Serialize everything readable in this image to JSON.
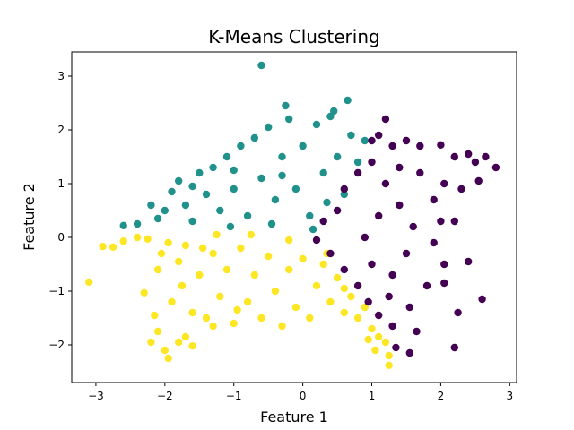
{
  "chart_data": {
    "type": "scatter",
    "title": "K-Means Clustering",
    "xlabel": "Feature 1",
    "ylabel": "Feature 2",
    "xlim": [
      -3.35,
      3.1
    ],
    "ylim": [
      -2.7,
      3.45
    ],
    "xticks": [
      -3,
      -2,
      -1,
      0,
      1,
      2,
      3
    ],
    "yticks": [
      -2,
      -1,
      0,
      1,
      2,
      3
    ],
    "grid": false,
    "legend": "none",
    "colors": {
      "cluster_yellow": "#fde725",
      "cluster_teal": "#21918c",
      "cluster_purple": "#440154"
    },
    "series": [
      {
        "color": "#fde725",
        "points": [
          [
            -3.1,
            -0.83
          ],
          [
            -2.9,
            -0.17
          ],
          [
            -2.75,
            -0.18
          ],
          [
            -2.6,
            -0.07
          ],
          [
            -2.4,
            0.0
          ],
          [
            -2.25,
            -0.03
          ],
          [
            -2.3,
            -1.03
          ],
          [
            -2.2,
            -1.95
          ],
          [
            -2.1,
            -1.75
          ],
          [
            -2.0,
            -2.1
          ],
          [
            -1.95,
            -2.25
          ],
          [
            -1.8,
            -1.95
          ],
          [
            -1.7,
            -1.85
          ],
          [
            -1.6,
            -2.02
          ],
          [
            -2.05,
            -0.3
          ],
          [
            -2.1,
            -0.6
          ],
          [
            -1.95,
            -0.1
          ],
          [
            -1.8,
            -0.45
          ],
          [
            -1.75,
            -0.9
          ],
          [
            -1.9,
            -1.2
          ],
          [
            -1.6,
            -1.4
          ],
          [
            -1.5,
            -0.7
          ],
          [
            -1.4,
            -1.5
          ],
          [
            -1.3,
            -0.3
          ],
          [
            -1.2,
            -1.1
          ],
          [
            -1.1,
            -0.6
          ],
          [
            -1.0,
            -1.6
          ],
          [
            -0.9,
            -0.2
          ],
          [
            -0.8,
            -1.2
          ],
          [
            -0.7,
            -0.7
          ],
          [
            -0.6,
            -1.5
          ],
          [
            -0.5,
            -0.35
          ],
          [
            -0.4,
            -1.0
          ],
          [
            -0.3,
            -1.65
          ],
          [
            -0.2,
            -0.6
          ],
          [
            -0.1,
            -1.3
          ],
          [
            0.0,
            -0.4
          ],
          [
            0.1,
            -1.5
          ],
          [
            0.2,
            -0.9
          ],
          [
            0.3,
            -0.5
          ],
          [
            0.4,
            -1.2
          ],
          [
            0.5,
            -0.75
          ],
          [
            0.6,
            -1.4
          ],
          [
            0.7,
            -1.1
          ],
          [
            0.8,
            -1.5
          ],
          [
            0.9,
            -1.3
          ],
          [
            1.0,
            -1.7
          ],
          [
            1.1,
            -1.85
          ],
          [
            1.2,
            -1.95
          ],
          [
            1.25,
            -2.2
          ],
          [
            1.25,
            -2.38
          ],
          [
            1.05,
            -2.1
          ],
          [
            0.95,
            -1.9
          ],
          [
            -1.3,
            -1.65
          ],
          [
            -1.7,
            -0.15
          ],
          [
            -1.25,
            0.05
          ],
          [
            -0.75,
            0.05
          ],
          [
            -0.2,
            -0.05
          ],
          [
            0.35,
            -0.3
          ],
          [
            -2.15,
            -1.45
          ],
          [
            -1.45,
            -0.2
          ],
          [
            -0.95,
            -1.35
          ],
          [
            0.6,
            -0.95
          ]
        ]
      },
      {
        "color": "#21918c",
        "points": [
          [
            -0.6,
            3.2
          ],
          [
            -2.6,
            0.22
          ],
          [
            -2.4,
            0.25
          ],
          [
            -2.2,
            0.6
          ],
          [
            -2.1,
            0.35
          ],
          [
            -2.0,
            0.5
          ],
          [
            -1.9,
            0.85
          ],
          [
            -1.8,
            1.05
          ],
          [
            -1.7,
            0.6
          ],
          [
            -1.6,
            0.3
          ],
          [
            -1.5,
            1.2
          ],
          [
            -1.4,
            0.8
          ],
          [
            -1.3,
            1.3
          ],
          [
            -1.2,
            0.5
          ],
          [
            -1.1,
            1.5
          ],
          [
            -1.0,
            0.9
          ],
          [
            -0.9,
            1.7
          ],
          [
            -0.8,
            0.4
          ],
          [
            -0.7,
            1.85
          ],
          [
            -0.6,
            1.1
          ],
          [
            -0.5,
            2.05
          ],
          [
            -0.4,
            0.7
          ],
          [
            -0.3,
            1.5
          ],
          [
            -0.2,
            2.2
          ],
          [
            -0.1,
            0.9
          ],
          [
            0.0,
            1.7
          ],
          [
            0.1,
            0.4
          ],
          [
            0.2,
            2.1
          ],
          [
            0.3,
            1.2
          ],
          [
            0.4,
            2.25
          ],
          [
            0.5,
            1.5
          ],
          [
            0.6,
            0.8
          ],
          [
            0.7,
            1.9
          ],
          [
            0.8,
            1.4
          ],
          [
            0.9,
            1.8
          ],
          [
            -0.25,
            2.45
          ],
          [
            0.65,
            2.55
          ],
          [
            0.45,
            2.35
          ],
          [
            -1.0,
            1.25
          ],
          [
            -1.6,
            0.95
          ],
          [
            0.15,
            0.15
          ],
          [
            -0.45,
            0.25
          ],
          [
            -1.05,
            0.2
          ],
          [
            -0.3,
            1.15
          ],
          [
            0.35,
            0.65
          ]
        ]
      },
      {
        "color": "#440154",
        "points": [
          [
            1.2,
            2.2
          ],
          [
            1.0,
            1.8
          ],
          [
            1.1,
            1.9
          ],
          [
            1.3,
            1.7
          ],
          [
            1.5,
            1.8
          ],
          [
            1.7,
            1.7
          ],
          [
            2.0,
            1.72
          ],
          [
            2.2,
            1.5
          ],
          [
            2.4,
            1.55
          ],
          [
            2.5,
            1.4
          ],
          [
            2.65,
            1.5
          ],
          [
            2.8,
            1.3
          ],
          [
            2.55,
            1.05
          ],
          [
            2.3,
            0.9
          ],
          [
            2.05,
            1.0
          ],
          [
            1.9,
            0.7
          ],
          [
            2.0,
            0.3
          ],
          [
            2.2,
            0.3
          ],
          [
            1.9,
            -0.1
          ],
          [
            2.05,
            -0.5
          ],
          [
            2.4,
            -0.45
          ],
          [
            2.05,
            -0.85
          ],
          [
            2.25,
            -1.4
          ],
          [
            2.6,
            -1.15
          ],
          [
            2.2,
            -2.05
          ],
          [
            1.65,
            -1.75
          ],
          [
            1.35,
            -2.05
          ],
          [
            1.55,
            -2.15
          ],
          [
            1.3,
            -1.65
          ],
          [
            1.1,
            -1.45
          ],
          [
            0.95,
            -1.2
          ],
          [
            0.8,
            -0.9
          ],
          [
            0.6,
            -0.6
          ],
          [
            0.4,
            -0.3
          ],
          [
            0.2,
            -0.05
          ],
          [
            0.3,
            0.3
          ],
          [
            0.5,
            0.5
          ],
          [
            0.6,
            0.9
          ],
          [
            0.8,
            1.2
          ],
          [
            1.0,
            1.4
          ],
          [
            1.2,
            1.0
          ],
          [
            1.4,
            0.6
          ],
          [
            1.6,
            0.2
          ],
          [
            1.5,
            -0.3
          ],
          [
            1.3,
            -0.7
          ],
          [
            1.0,
            -0.5
          ],
          [
            0.9,
            0.0
          ],
          [
            1.1,
            0.4
          ],
          [
            1.7,
            1.2
          ],
          [
            1.8,
            -0.9
          ],
          [
            1.55,
            -1.3
          ],
          [
            1.4,
            1.3
          ],
          [
            1.25,
            -1.1
          ]
        ]
      }
    ]
  }
}
